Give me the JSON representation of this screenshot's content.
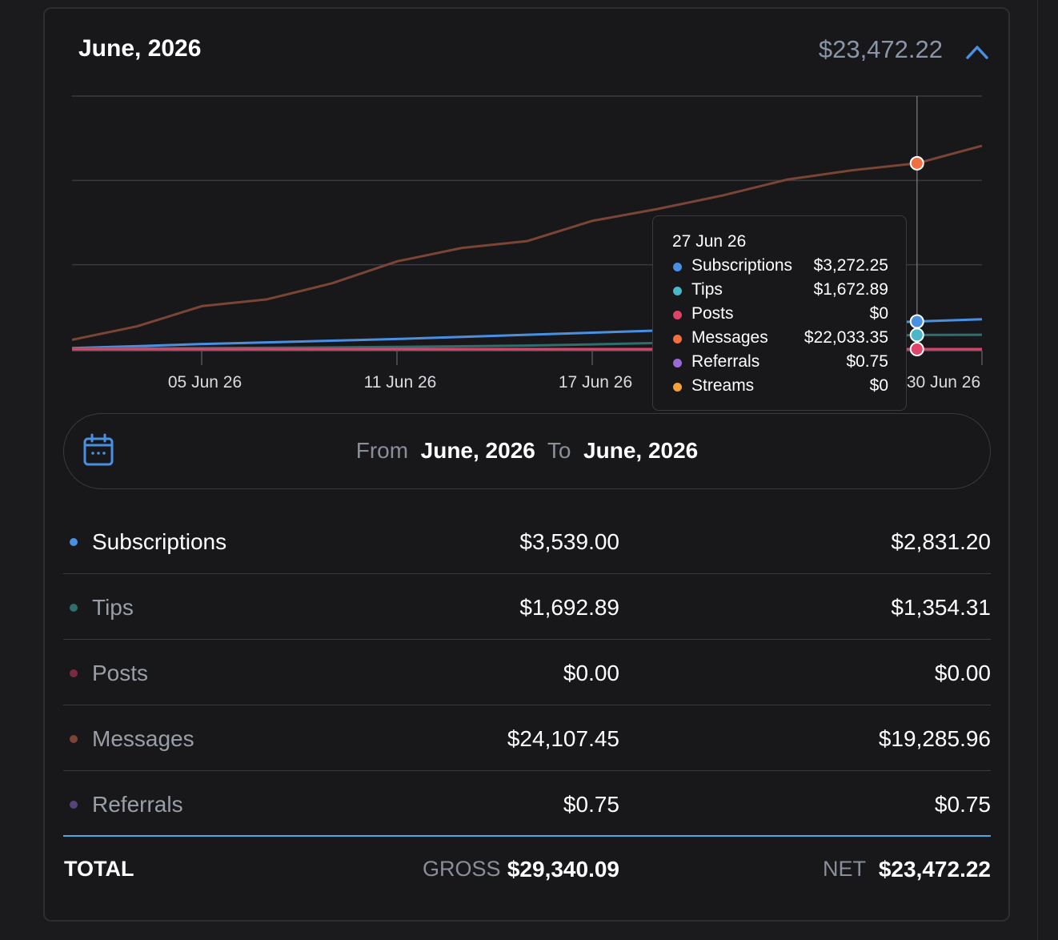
{
  "header": {
    "title": "June, 2026",
    "total": "$23,472.22",
    "collapse_icon": "chevron-up-icon"
  },
  "chart_data": {
    "type": "line",
    "x_tick_labels": [
      "05 Jun 26",
      "11 Jun 26",
      "17 Jun 26",
      "30 Jun 26"
    ],
    "x": [
      "01 Jun 26",
      "03 Jun 26",
      "05 Jun 26",
      "07 Jun 26",
      "09 Jun 26",
      "11 Jun 26",
      "13 Jun 26",
      "15 Jun 26",
      "17 Jun 26",
      "19 Jun 26",
      "21 Jun 26",
      "23 Jun 26",
      "25 Jun 26",
      "27 Jun 26",
      "28 Jun 26"
    ],
    "ylim": [
      0,
      30000
    ],
    "grid": true,
    "series": [
      {
        "name": "Messages",
        "color": "#7a4535",
        "values": [
          1100,
          2700,
          5100,
          5900,
          7800,
          10400,
          12000,
          12800,
          15200,
          16600,
          18200,
          20100,
          21200,
          22033,
          24107
        ]
      },
      {
        "name": "Subscriptions",
        "color": "#4a90e2",
        "values": [
          120,
          350,
          600,
          800,
          1000,
          1200,
          1450,
          1700,
          1950,
          2200,
          2450,
          2700,
          3000,
          3272,
          3539
        ]
      },
      {
        "name": "Tips",
        "color": "#2f6e6e",
        "values": [
          40,
          80,
          120,
          160,
          200,
          260,
          330,
          420,
          560,
          720,
          900,
          1150,
          1450,
          1673,
          1693
        ]
      },
      {
        "name": "Posts",
        "color": "#e0436a",
        "values": [
          0,
          0,
          0,
          0,
          0,
          0,
          0,
          0,
          0,
          0,
          0,
          0,
          0,
          0,
          0
        ]
      }
    ],
    "highlight_index": 13,
    "highlight_points": [
      {
        "series": "Messages",
        "color": "#f07040"
      },
      {
        "series": "Subscriptions",
        "color": "#4a90e2"
      },
      {
        "series": "Tips",
        "color": "#4bb6c6"
      },
      {
        "series": "Posts",
        "color": "#e0436a"
      }
    ]
  },
  "tooltip": {
    "date": "27 Jun 26",
    "rows": [
      {
        "label": "Subscriptions",
        "value": "$3,272.25",
        "color": "#4a90e2"
      },
      {
        "label": "Tips",
        "value": "$1,672.89",
        "color": "#4bb6c6"
      },
      {
        "label": "Posts",
        "value": "$0",
        "color": "#e0436a"
      },
      {
        "label": "Messages",
        "value": "$22,033.35",
        "color": "#f07040"
      },
      {
        "label": "Referrals",
        "value": "$0.75",
        "color": "#9c6ad4"
      },
      {
        "label": "Streams",
        "value": "$0",
        "color": "#f2a23a"
      }
    ]
  },
  "date_range": {
    "icon": "calendar-icon",
    "from_label": "From",
    "from_value": "June, 2026",
    "to_label": "To",
    "to_value": "June, 2026"
  },
  "breakdown": [
    {
      "label": "Subscriptions",
      "gross": "$3,539.00",
      "net": "$2,831.20",
      "dot_color": "#4a90e2",
      "label_color": "#ffffff"
    },
    {
      "label": "Tips",
      "gross": "$1,692.89",
      "net": "$1,354.31",
      "dot_color": "#2f6e6e",
      "label_color": "#9a9ea6"
    },
    {
      "label": "Posts",
      "gross": "$0.00",
      "net": "$0.00",
      "dot_color": "#7a2a40",
      "label_color": "#9a9ea6"
    },
    {
      "label": "Messages",
      "gross": "$24,107.45",
      "net": "$19,285.96",
      "dot_color": "#7a4535",
      "label_color": "#9a9ea6"
    },
    {
      "label": "Referrals",
      "gross": "$0.75",
      "net": "$0.75",
      "dot_color": "#55447a",
      "label_color": "#9a9ea6"
    }
  ],
  "totals": {
    "label": "TOTAL",
    "gross_label": "GROSS",
    "gross_value": "$29,340.09",
    "net_label": "NET",
    "net_value": "$23,472.22"
  }
}
